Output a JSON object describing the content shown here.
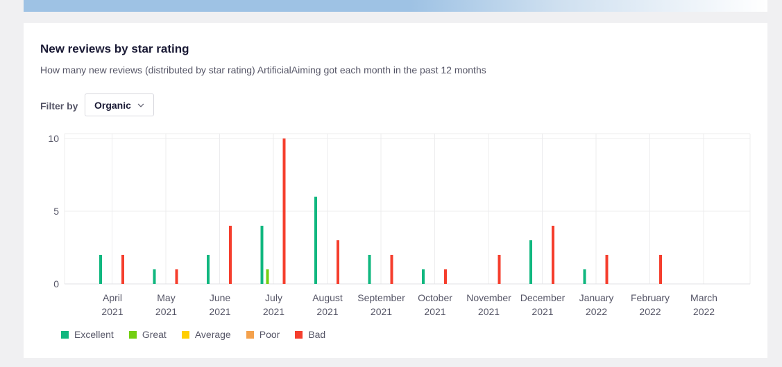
{
  "section": {
    "title": "New reviews by star rating",
    "subtitle": "How many new reviews (distributed by star rating) ArtificialAiming got each month in the past 12 months"
  },
  "filter": {
    "label": "Filter by",
    "value": "Organic"
  },
  "colors": {
    "Excellent": "#10b77f",
    "Great": "#73cf11",
    "Average": "#ffce00",
    "Poor": "#f4a14c",
    "Bad": "#f53e2d"
  },
  "chart_data": {
    "type": "bar",
    "categories": [
      [
        "April",
        "2021"
      ],
      [
        "May",
        "2021"
      ],
      [
        "June",
        "2021"
      ],
      [
        "July",
        "2021"
      ],
      [
        "August",
        "2021"
      ],
      [
        "September",
        "2021"
      ],
      [
        "October",
        "2021"
      ],
      [
        "November",
        "2021"
      ],
      [
        "December",
        "2021"
      ],
      [
        "January",
        "2022"
      ],
      [
        "February",
        "2022"
      ],
      [
        "March",
        "2022"
      ]
    ],
    "ylim": [
      0,
      10
    ],
    "yticks": [
      0,
      5,
      10
    ],
    "grid": true,
    "legend_position": "bottom-left",
    "series": [
      {
        "name": "Excellent",
        "values": [
          2,
          1,
          2,
          4,
          6,
          2,
          1,
          0,
          3,
          1,
          0,
          0
        ]
      },
      {
        "name": "Great",
        "values": [
          0,
          0,
          0,
          1,
          0,
          0,
          0,
          0,
          0,
          0,
          0,
          0
        ]
      },
      {
        "name": "Average",
        "values": [
          0,
          0,
          0,
          0,
          0,
          0,
          0,
          0,
          0,
          0,
          0,
          0
        ]
      },
      {
        "name": "Poor",
        "values": [
          0,
          0,
          0,
          0,
          0,
          0,
          0,
          0,
          0,
          0,
          0,
          0
        ]
      },
      {
        "name": "Bad",
        "values": [
          2,
          1,
          4,
          10,
          3,
          2,
          1,
          2,
          4,
          2,
          2,
          0
        ]
      }
    ]
  }
}
